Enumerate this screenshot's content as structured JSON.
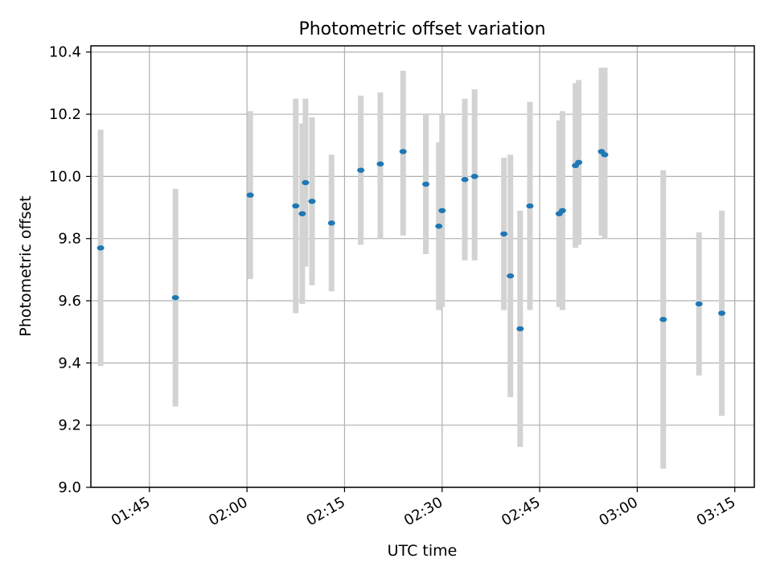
{
  "chart_data": {
    "type": "scatter",
    "title": "Photometric offset variation",
    "xlabel": "UTC time",
    "ylabel": "Photometric offset",
    "xlim": [
      "01:36",
      "03:18"
    ],
    "ylim": [
      9.0,
      10.42
    ],
    "xticks": [
      "01:45",
      "02:00",
      "02:15",
      "02:30",
      "02:45",
      "03:00",
      "03:15"
    ],
    "yticks": [
      "9.0",
      "9.2",
      "9.4",
      "9.6",
      "9.8",
      "10.0",
      "10.2",
      "10.4"
    ],
    "grid": true,
    "legend": "none",
    "point_color": "#1f77b4",
    "errorbar_color": "#d3d3d3",
    "points": [
      {
        "x": "01:37:30",
        "y": 9.77,
        "lo": 9.39,
        "hi": 10.15
      },
      {
        "x": "01:49:00",
        "y": 9.61,
        "lo": 9.26,
        "hi": 9.96
      },
      {
        "x": "02:00:30",
        "y": 9.94,
        "lo": 9.67,
        "hi": 10.21
      },
      {
        "x": "02:07:30",
        "y": 9.905,
        "lo": 9.56,
        "hi": 10.25
      },
      {
        "x": "02:08:30",
        "y": 9.88,
        "lo": 9.59,
        "hi": 10.17
      },
      {
        "x": "02:09:00",
        "y": 9.98,
        "lo": 9.71,
        "hi": 10.25
      },
      {
        "x": "02:10:00",
        "y": 9.92,
        "lo": 9.65,
        "hi": 10.19
      },
      {
        "x": "02:13:00",
        "y": 9.85,
        "lo": 9.63,
        "hi": 10.07
      },
      {
        "x": "02:17:30",
        "y": 10.02,
        "lo": 9.78,
        "hi": 10.26
      },
      {
        "x": "02:20:30",
        "y": 10.04,
        "lo": 9.8,
        "hi": 10.27
      },
      {
        "x": "02:24:00",
        "y": 10.08,
        "lo": 9.81,
        "hi": 10.34
      },
      {
        "x": "02:27:30",
        "y": 9.975,
        "lo": 9.75,
        "hi": 10.2
      },
      {
        "x": "02:29:30",
        "y": 9.84,
        "lo": 9.57,
        "hi": 10.11
      },
      {
        "x": "02:30:00",
        "y": 9.89,
        "lo": 9.58,
        "hi": 10.2
      },
      {
        "x": "02:33:30",
        "y": 9.99,
        "lo": 9.73,
        "hi": 10.25
      },
      {
        "x": "02:35:00",
        "y": 10.0,
        "lo": 9.73,
        "hi": 10.28
      },
      {
        "x": "02:39:30",
        "y": 9.815,
        "lo": 9.57,
        "hi": 10.06
      },
      {
        "x": "02:40:30",
        "y": 9.68,
        "lo": 9.29,
        "hi": 10.07
      },
      {
        "x": "02:42:00",
        "y": 9.51,
        "lo": 9.13,
        "hi": 9.89
      },
      {
        "x": "02:43:30",
        "y": 9.905,
        "lo": 9.57,
        "hi": 10.24
      },
      {
        "x": "02:48:00",
        "y": 9.88,
        "lo": 9.58,
        "hi": 10.18
      },
      {
        "x": "02:48:30",
        "y": 9.89,
        "lo": 9.57,
        "hi": 10.21
      },
      {
        "x": "02:50:30",
        "y": 10.035,
        "lo": 9.77,
        "hi": 10.3
      },
      {
        "x": "02:51:00",
        "y": 10.045,
        "lo": 9.78,
        "hi": 10.31
      },
      {
        "x": "02:54:30",
        "y": 10.08,
        "lo": 9.81,
        "hi": 10.35
      },
      {
        "x": "02:55:00",
        "y": 10.07,
        "lo": 9.8,
        "hi": 10.35
      },
      {
        "x": "03:04:00",
        "y": 9.54,
        "lo": 9.06,
        "hi": 10.02
      },
      {
        "x": "03:09:30",
        "y": 9.59,
        "lo": 9.36,
        "hi": 9.82
      },
      {
        "x": "03:13:00",
        "y": 9.56,
        "lo": 9.23,
        "hi": 9.89
      }
    ]
  }
}
